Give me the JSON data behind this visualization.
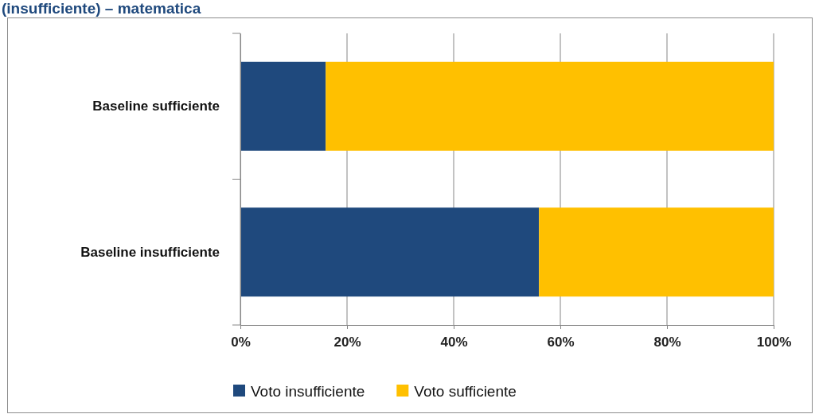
{
  "chart_data": {
    "type": "bar",
    "title": "(insufficiente) – matematica",
    "orientation": "horizontal",
    "stacked": true,
    "categories": [
      "Baseline sufficiente",
      "Baseline insufficiente"
    ],
    "series": [
      {
        "name": "Voto insufficiente",
        "color": "#1f497d",
        "values": [
          16,
          56
        ]
      },
      {
        "name": "Voto sufficiente",
        "color": "#ffc000",
        "values": [
          84,
          44
        ]
      }
    ],
    "xlim": [
      0,
      100
    ],
    "xticks": [
      {
        "value": 0,
        "label": "0%"
      },
      {
        "value": 20,
        "label": "20%"
      },
      {
        "value": 40,
        "label": "40%"
      },
      {
        "value": 60,
        "label": "60%"
      },
      {
        "value": 80,
        "label": "80%"
      },
      {
        "value": 100,
        "label": "100%"
      }
    ],
    "grid": "x",
    "legend": "bottom"
  }
}
